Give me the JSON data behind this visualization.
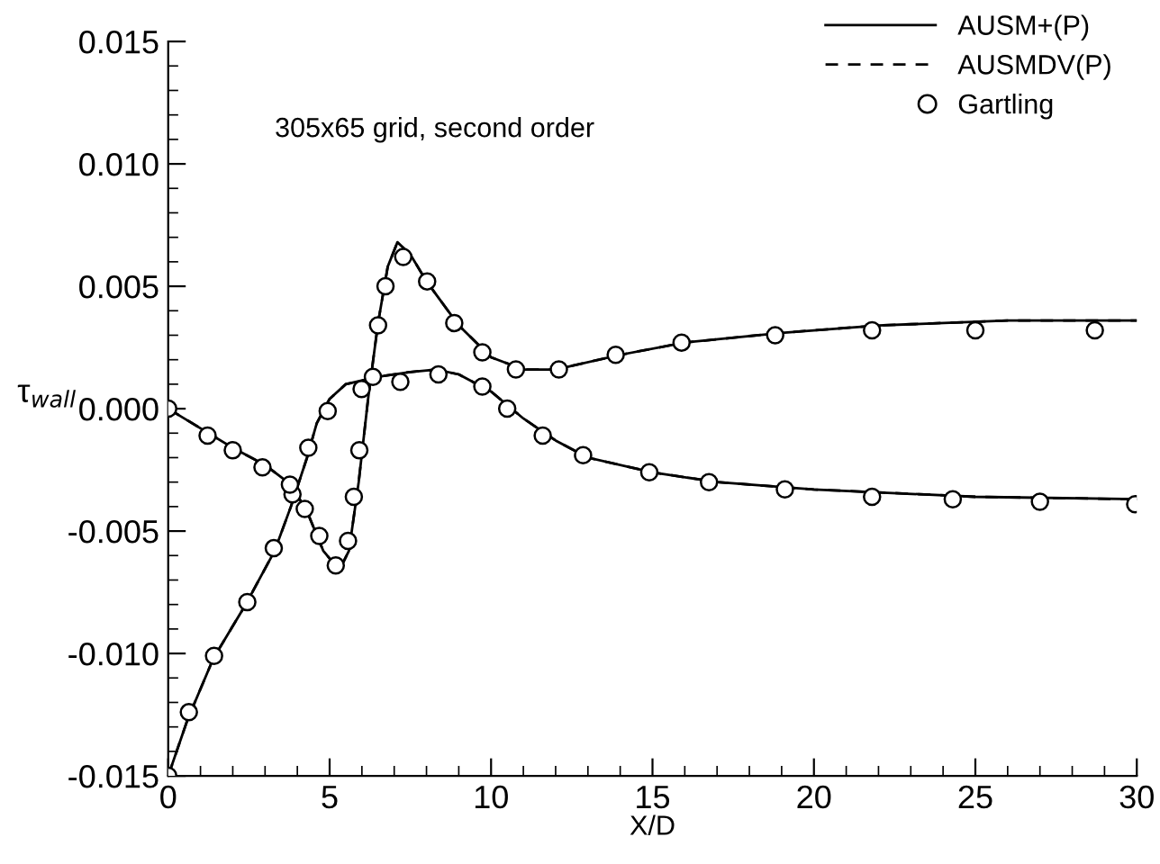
{
  "chart_data": {
    "type": "line",
    "xlabel": "X/D",
    "ylabel": "τ$_{wall}$",
    "annotations": [
      "305x65 grid, second order"
    ],
    "xlim": [
      0,
      30
    ],
    "ylim": [
      -0.015,
      0.015
    ],
    "xticks": [
      0,
      5,
      10,
      15,
      20,
      25,
      30
    ],
    "yticks": [
      {
        "value": -0.015,
        "label": "-0.015"
      },
      {
        "value": -0.01,
        "label": "-0.010"
      },
      {
        "value": -0.005,
        "label": "-0.005"
      },
      {
        "value": 0,
        "label": "0.000"
      },
      {
        "value": 0.005,
        "label": "0.005"
      },
      {
        "value": 0.01,
        "label": "0.010"
      },
      {
        "value": 0.015,
        "label": "0.015"
      }
    ],
    "grid": false,
    "legend": "top right",
    "series": [
      {
        "name": "AUSM+(P)",
        "line_style": "solid",
        "color": "#000000",
        "x": [
          0,
          0.6,
          1.4,
          2.4,
          3.3,
          3.8,
          4.3,
          4.6,
          5,
          5.5,
          6.5,
          7.5,
          8.3,
          9,
          10,
          11,
          12,
          13,
          15,
          17,
          20,
          25,
          30
        ],
        "values": [
          -0.015,
          -0.0127,
          -0.0102,
          -0.008,
          -0.0058,
          -0.004,
          -0.002,
          -0.0006,
          0.0004,
          0.001,
          0.0013,
          0.0015,
          0.0016,
          0.0014,
          0.0007,
          -0.0004,
          -0.0013,
          -0.002,
          -0.0026,
          -0.003,
          -0.0033,
          -0.0036,
          -0.0037
        ]
      },
      {
        "line_style": "solid",
        "color": "#000000",
        "x": [
          0,
          1,
          2,
          3,
          3.8,
          4.3,
          4.8,
          5.3,
          5.6,
          5.9,
          6.2,
          6.5,
          6.8,
          7.1,
          7.5,
          8,
          9,
          10,
          11,
          12,
          14,
          16,
          19,
          22,
          26,
          30
        ],
        "values": [
          0,
          -0.0008,
          -0.0016,
          -0.0023,
          -0.0031,
          -0.0042,
          -0.0058,
          -0.0066,
          -0.0058,
          -0.003,
          0.0005,
          0.0035,
          0.0058,
          0.0068,
          0.0063,
          0.0052,
          0.0034,
          0.0021,
          0.0016,
          0.0016,
          0.0022,
          0.0027,
          0.0031,
          0.0034,
          0.0036,
          0.0036
        ]
      },
      {
        "name": "AUSMDV(P)",
        "line_style": "dashed",
        "color": "#000000",
        "x": [
          0,
          0.6,
          1.4,
          2.4,
          3.3,
          3.8,
          4.3,
          4.6,
          5,
          5.5,
          6.5,
          7.5,
          8.3,
          9,
          10,
          11,
          12,
          13,
          15,
          17,
          20,
          25,
          30
        ],
        "values": [
          -0.015,
          -0.0127,
          -0.0102,
          -0.008,
          -0.0058,
          -0.004,
          -0.002,
          -0.0006,
          0.0004,
          0.001,
          0.0013,
          0.0015,
          0.0016,
          0.0014,
          0.0007,
          -0.0004,
          -0.0013,
          -0.002,
          -0.0026,
          -0.003,
          -0.0033,
          -0.0036,
          -0.0037
        ]
      },
      {
        "line_style": "dashed",
        "color": "#000000",
        "x": [
          0,
          1,
          2,
          3,
          3.8,
          4.3,
          4.8,
          5.3,
          5.6,
          5.9,
          6.2,
          6.5,
          6.8,
          7.1,
          7.5,
          8,
          9,
          10,
          11,
          12,
          14,
          16,
          19,
          22,
          26,
          30
        ],
        "values": [
          0,
          -0.0008,
          -0.0016,
          -0.0023,
          -0.0031,
          -0.0042,
          -0.0058,
          -0.0066,
          -0.0058,
          -0.003,
          0.0005,
          0.0035,
          0.0058,
          0.0068,
          0.0063,
          0.0052,
          0.0034,
          0.0021,
          0.0016,
          0.0016,
          0.0022,
          0.0027,
          0.0031,
          0.0034,
          0.0036,
          0.0036
        ]
      },
      {
        "name": "Gartling",
        "type": "scatter",
        "marker": "circle",
        "color": "#000000",
        "x": [
          0,
          0.64,
          1.42,
          2.45,
          3.27,
          3.85,
          4.34,
          4.94,
          5.99,
          7.19,
          8.37,
          9.73,
          10.5,
          11.6,
          12.85,
          14.9,
          16.75,
          19.1,
          21.8,
          24.3,
          27.0,
          29.95,
          0,
          1.22,
          2.0,
          2.92,
          3.77,
          4.23,
          4.68,
          5.19,
          5.57,
          5.75,
          5.92,
          6.34,
          6.5,
          6.73,
          7.28,
          8.02,
          8.86,
          9.73,
          10.77,
          12.1,
          13.86,
          15.9,
          18.8,
          21.8,
          25.0,
          28.7
        ],
        "values": [
          -0.015,
          -0.0124,
          -0.0101,
          -0.0079,
          -0.0057,
          -0.0035,
          -0.0016,
          -0.0001,
          0.0008,
          0.0011,
          0.0014,
          0.0009,
          0.0,
          -0.0011,
          -0.0019,
          -0.0026,
          -0.003,
          -0.0033,
          -0.0036,
          -0.0037,
          -0.0038,
          -0.0039,
          0,
          -0.0011,
          -0.0017,
          -0.0024,
          -0.0031,
          -0.0041,
          -0.0052,
          -0.0064,
          -0.0054,
          -0.0036,
          -0.0017,
          0.0013,
          0.0034,
          0.005,
          0.0062,
          0.0052,
          0.0035,
          0.0023,
          0.0016,
          0.0016,
          0.0022,
          0.0027,
          0.003,
          0.0032,
          0.0032,
          0.0032
        ]
      }
    ]
  }
}
